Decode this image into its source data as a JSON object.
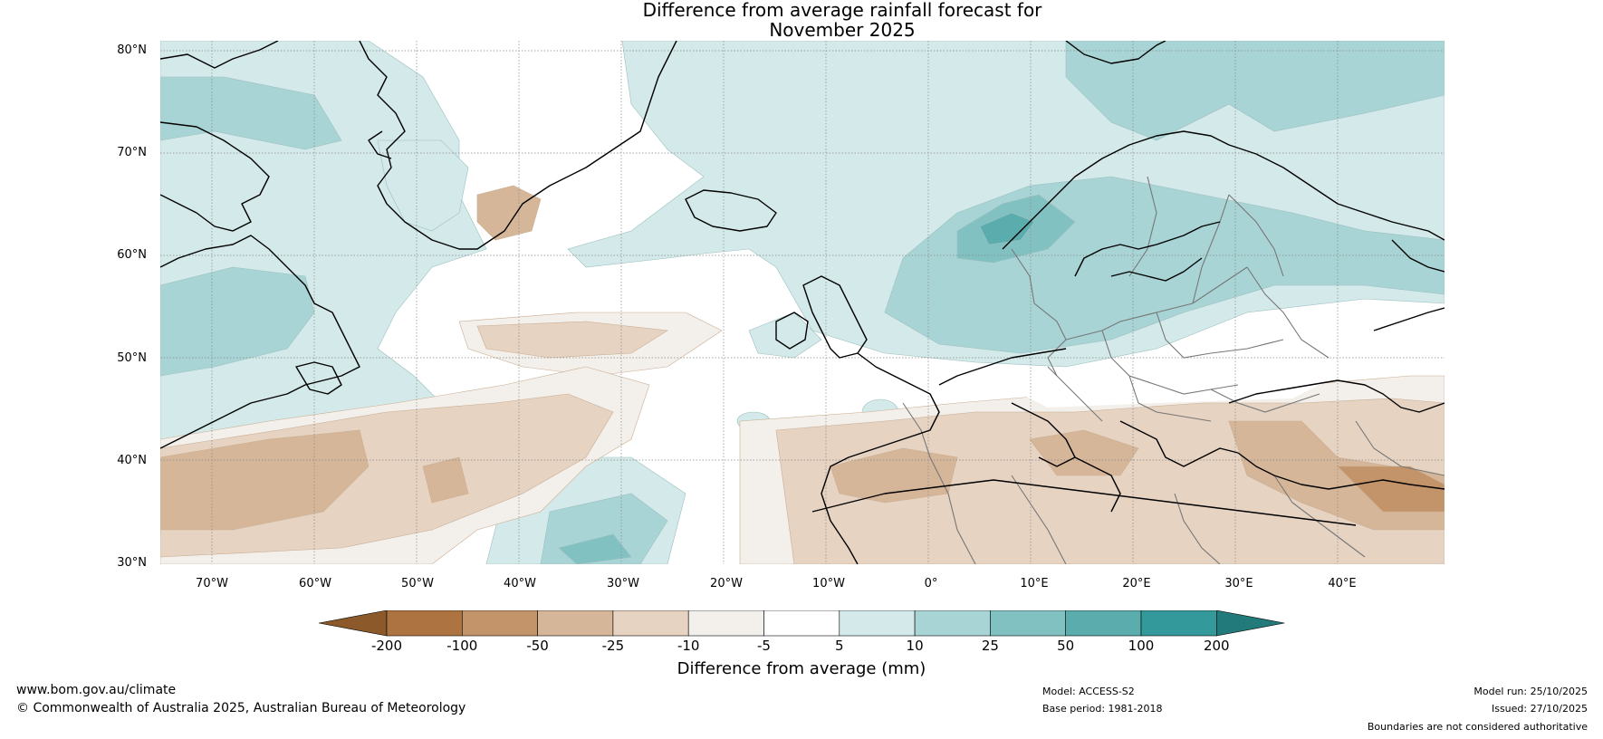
{
  "title_line1": "Difference from average rainfall forecast for",
  "title_line2": "November 2025",
  "map": {
    "projection": "plate carree",
    "lon_range": [
      -75,
      50
    ],
    "lat_range": [
      30,
      80
    ],
    "lat_labels": [
      "80°N",
      "70°N",
      "60°N",
      "50°N",
      "40°N",
      "30°N"
    ],
    "lon_labels": [
      "70°W",
      "60°W",
      "50°W",
      "40°W",
      "30°W",
      "20°W",
      "10°W",
      "0°",
      "10°E",
      "20°E",
      "30°E",
      "40°E"
    ]
  },
  "colorbar": {
    "ticks": [
      "-200",
      "-100",
      "-50",
      "-25",
      "-10",
      "-5",
      "5",
      "10",
      "25",
      "50",
      "100",
      "200"
    ],
    "colors": [
      "#8c5a2a",
      "#ad7441",
      "#c39469",
      "#d6b699",
      "#e6d3c2",
      "#f3efea",
      "#ffffff",
      "#d4e9e9",
      "#a8d4d5",
      "#82c1c2",
      "#5aacad",
      "#33999a",
      "#237a7a"
    ],
    "label": "Difference from average (mm)"
  },
  "footer": {
    "url": "www.bom.gov.au/climate",
    "copyright": "© Commonwealth of Australia 2025, Australian Bureau of Meteorology",
    "model": "Model: ACCESS-S2",
    "base_period": "Base period: 1981-2018",
    "model_run": "Model run: 25/10/2025",
    "issued": "Issued: 27/10/2025",
    "boundaries": "Boundaries are not considered authoritative"
  }
}
